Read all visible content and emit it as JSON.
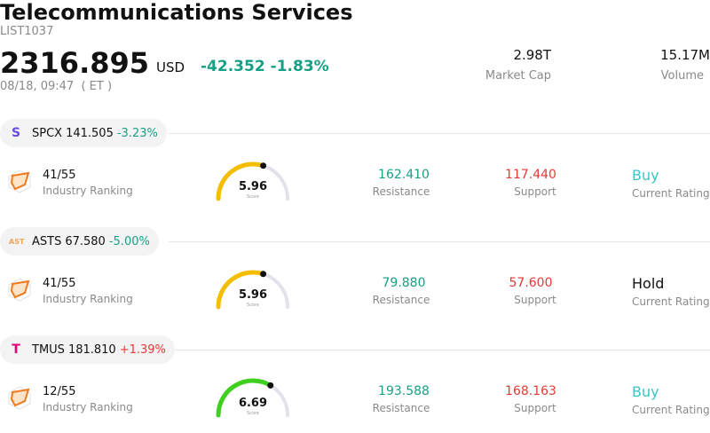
{
  "header": {
    "title": "Telecommunications Services",
    "code": "LIST1037",
    "price": "2316.895",
    "currency": "USD",
    "change": "-42.352",
    "change_pct": "-1.83%",
    "time": "08/18, 09:47  ( ET )",
    "market_cap_value": "2.98T",
    "market_cap_label": "Market Cap",
    "volume_value": "15.17M",
    "volume_label": "Volume"
  },
  "stocks": [
    {
      "logo": "S",
      "logo_color": "#6c4ce0",
      "ticker": "SPCX",
      "price": "141.505",
      "change_pct": "-3.23%",
      "rank": "41/55",
      "rank_label": "Industry Ranking",
      "score": "5.96",
      "score_label": "Score",
      "score_fraction": 0.596,
      "gauge_color": "#f5bd00",
      "resistance": "162.410",
      "resistance_label": "Resistance",
      "support": "117.440",
      "support_label": "Support",
      "rating": "Buy",
      "rating_label": "Current Rating"
    },
    {
      "logo": "AST",
      "logo_color": "#f0a35a",
      "ticker": "ASTS",
      "price": "67.580",
      "change_pct": "-5.00%",
      "rank": "41/55",
      "rank_label": "Industry Ranking",
      "score": "5.96",
      "score_label": "Score",
      "score_fraction": 0.596,
      "gauge_color": "#f5bd00",
      "resistance": "79.880",
      "resistance_label": "Resistance",
      "support": "57.600",
      "support_label": "Support",
      "rating": "Hold",
      "rating_label": "Current Rating"
    },
    {
      "logo": "T",
      "logo_color": "#e20074",
      "ticker": "TMUS",
      "price": "181.810",
      "change_pct": "+1.39%",
      "rank": "12/55",
      "rank_label": "Industry Ranking",
      "score": "6.69",
      "score_label": "Score",
      "score_fraction": 0.669,
      "gauge_color": "#3fcf1f",
      "resistance": "193.588",
      "resistance_label": "Resistance",
      "support": "168.163",
      "support_label": "Support",
      "rating": "Buy",
      "rating_label": "Current Rating"
    }
  ]
}
